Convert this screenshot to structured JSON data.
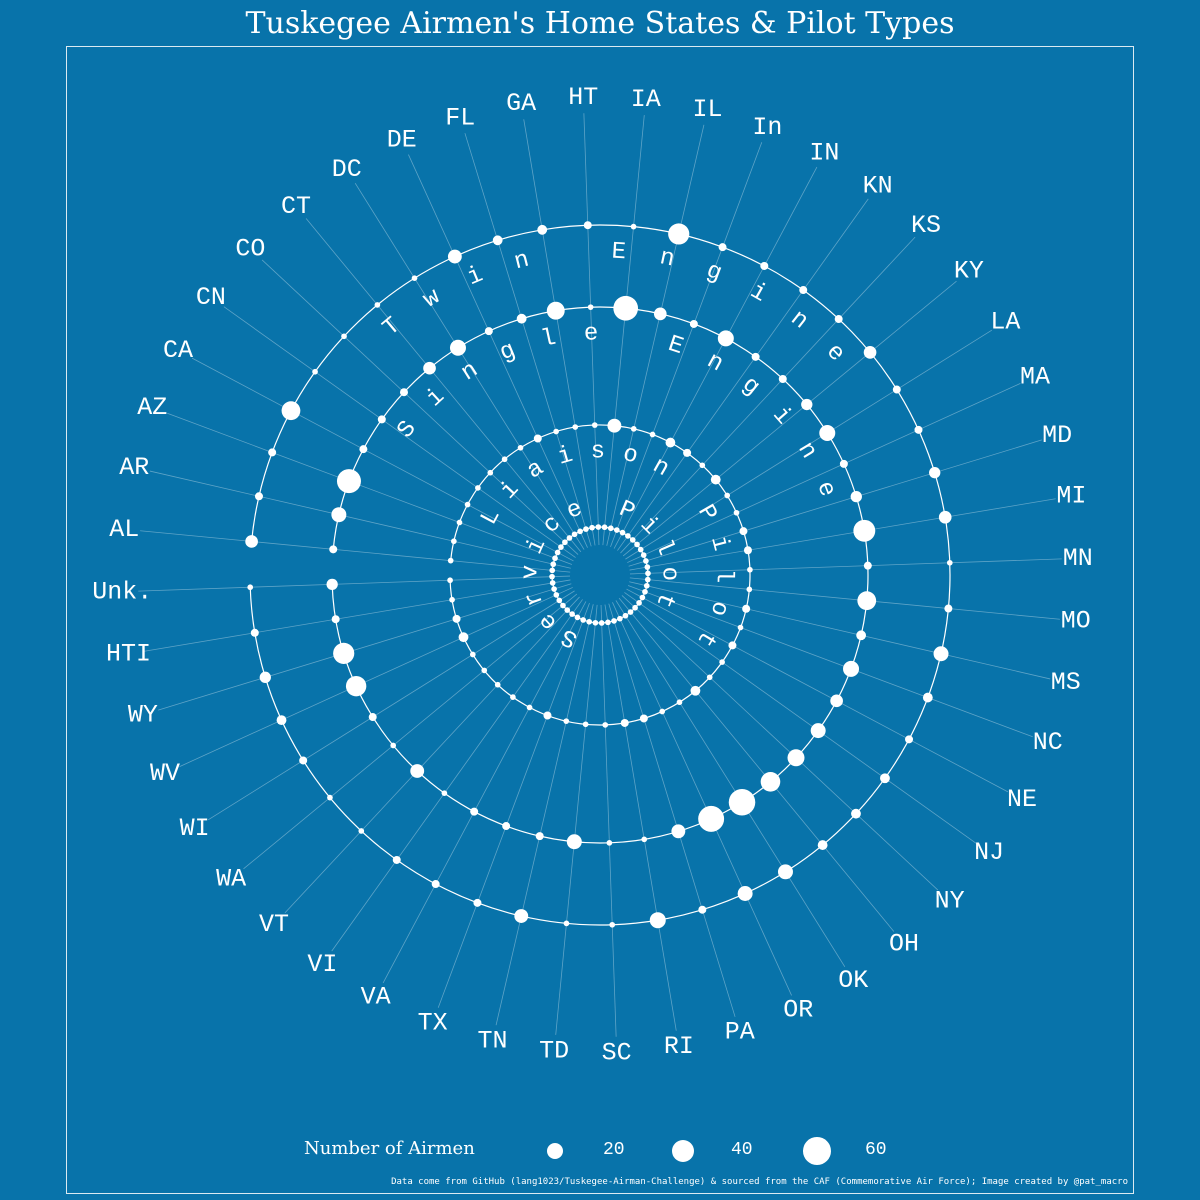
{
  "colors": {
    "background": "#0873aa",
    "foreground": "#ffffff",
    "page": "#ffffff"
  },
  "chart_data": {
    "type": "radial-bubble",
    "title": "Tuskegee Airmen's Home States & Pilot Types",
    "states": [
      "AL",
      "AR",
      "AZ",
      "CA",
      "CN",
      "CO",
      "CT",
      "DC",
      "DE",
      "FL",
      "GA",
      "HT",
      "IA",
      "IL",
      "In",
      "IN",
      "KN",
      "KS",
      "KY",
      "LA",
      "MA",
      "MD",
      "MI",
      "MN",
      "MO",
      "MS",
      "NC",
      "NE",
      "NJ",
      "NY",
      "OH",
      "OK",
      "OR",
      "PA",
      "RI",
      "SC",
      "TD",
      "TN",
      "TX",
      "VA",
      "VI",
      "VT",
      "WA",
      "WI",
      "WV",
      "WY",
      "HTI",
      "Unk."
    ],
    "series": [
      {
        "name": "Twin Engine",
        "values": [
          10,
          4,
          4,
          22,
          2,
          2,
          2,
          2,
          12,
          6,
          6,
          4,
          2,
          28,
          4,
          4,
          4,
          4,
          10,
          4,
          4,
          8,
          10,
          2,
          4,
          14,
          6,
          4,
          6,
          6,
          6,
          14,
          14,
          4,
          16,
          2,
          2,
          12,
          4,
          4,
          4,
          2,
          2,
          4,
          6,
          8,
          4,
          2
        ]
      },
      {
        "name": "Single Engine",
        "values": [
          4,
          14,
          36,
          4,
          4,
          4,
          10,
          16,
          4,
          6,
          20,
          2,
          38,
          10,
          4,
          16,
          4,
          4,
          8,
          16,
          4,
          8,
          30,
          4,
          22,
          6,
          16,
          10,
          14,
          18,
          24,
          44,
          42,
          12,
          2,
          2,
          14,
          4,
          4,
          4,
          2,
          12,
          2,
          4,
          26,
          28,
          4,
          8
        ]
      },
      {
        "name": "Liaison Pilot",
        "values": [
          2,
          2,
          2,
          2,
          2,
          2,
          2,
          2,
          4,
          2,
          2,
          2,
          12,
          2,
          2,
          6,
          4,
          2,
          6,
          2,
          2,
          4,
          4,
          2,
          2,
          4,
          2,
          4,
          2,
          2,
          6,
          2,
          2,
          4,
          4,
          2,
          2,
          2,
          4,
          2,
          2,
          2,
          2,
          2,
          6,
          4,
          2,
          2
        ]
      },
      {
        "name": "Service Pilot",
        "values": [
          2,
          2,
          2,
          2,
          2,
          2,
          2,
          2,
          2,
          2,
          2,
          2,
          2,
          2,
          2,
          2,
          2,
          2,
          2,
          2,
          2,
          2,
          2,
          2,
          2,
          2,
          2,
          2,
          2,
          2,
          2,
          2,
          2,
          2,
          2,
          2,
          2,
          2,
          2,
          2,
          2,
          2,
          2,
          2,
          2,
          2,
          2,
          2
        ]
      }
    ],
    "legend": {
      "title": "Number of Airmen",
      "values": [
        20,
        40,
        60
      ],
      "placement": "bottom"
    },
    "caption": "Data come from GitHub (lang1023/Tuskegee-Airman-Challenge) & sourced from the CAF (Commemorative Air Force); Image created by @pat_macro"
  }
}
